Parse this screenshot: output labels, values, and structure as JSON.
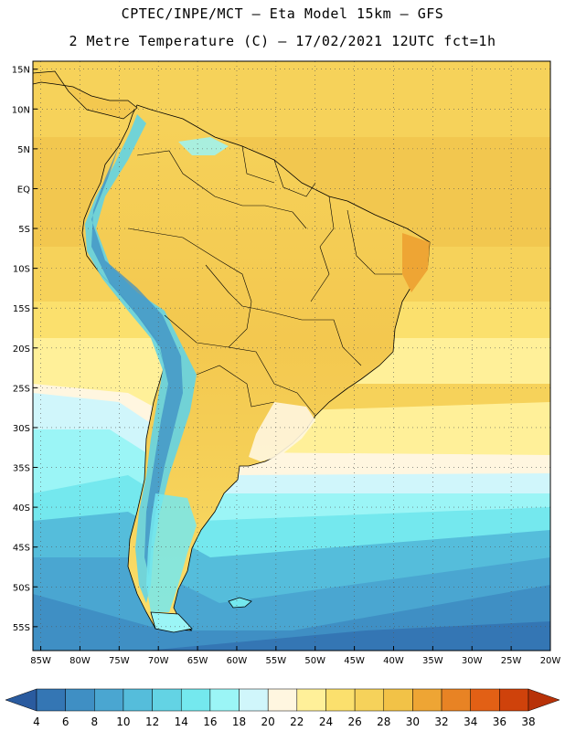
{
  "header": {
    "line1": "CPTEC/INPE/MCT –  Eta Model 15km – GFS",
    "line2": "2 Metre Temperature (C) – 17/02/2021 12UTC fct=1h"
  },
  "map": {
    "lat_labels": [
      "15N",
      "10N",
      "5N",
      "EQ",
      "5S",
      "10S",
      "15S",
      "20S",
      "25S",
      "30S",
      "35S",
      "40S",
      "45S",
      "50S",
      "55S"
    ],
    "lon_labels": [
      "85W",
      "80W",
      "75W",
      "70W",
      "65W",
      "60W",
      "55W",
      "50W",
      "45W",
      "40W",
      "35W",
      "30W",
      "25W",
      "20W"
    ],
    "lon_range": [
      -86,
      -20
    ],
    "lat_range": [
      -58,
      16
    ],
    "grid": true
  },
  "colorbar": {
    "levels": [
      "4",
      "6",
      "8",
      "10",
      "12",
      "14",
      "16",
      "18",
      "20",
      "22",
      "24",
      "26",
      "28",
      "30",
      "32",
      "34",
      "36",
      "38"
    ],
    "colors": [
      "#2a5b9f",
      "#3476b4",
      "#3f8fc4",
      "#4aa6d1",
      "#55bddb",
      "#63d3e4",
      "#74e8ee",
      "#9bf5f6",
      "#d0f6fb",
      "#fff6e0",
      "#fff099",
      "#fbe06d",
      "#f6d25a",
      "#f2c247",
      "#eea534",
      "#e88324",
      "#e26015",
      "#cf420b",
      "#b83208"
    ]
  }
}
